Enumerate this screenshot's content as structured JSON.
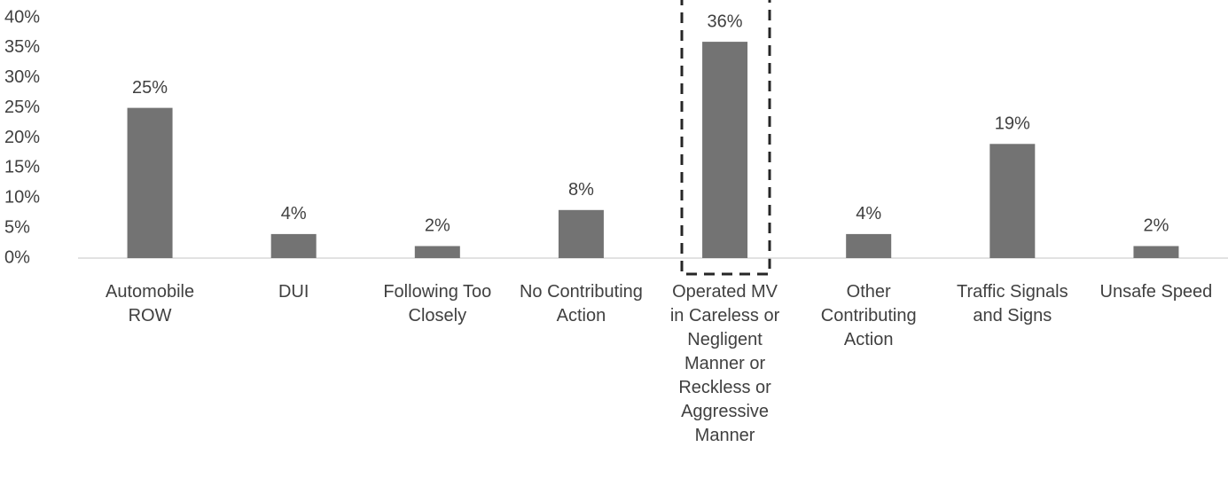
{
  "chart_data": {
    "type": "bar",
    "categories": [
      "Automobile ROW",
      "DUI",
      "Following Too Closely",
      "No Contributing Action",
      "Operated MV in Careless or Negligent Manner or Reckless or Aggressive Manner",
      "Other Contributing Action",
      "Traffic Signals and Signs",
      "Unsafe Speed"
    ],
    "values": [
      25,
      4,
      2,
      8,
      36,
      4,
      19,
      2
    ],
    "value_labels": [
      "25%",
      "4%",
      "2%",
      "8%",
      "36%",
      "4%",
      "19%",
      "2%"
    ],
    "color": "#737373",
    "ylim": [
      0,
      40
    ],
    "yticks": [
      {
        "value": 0,
        "label": "0%"
      },
      {
        "value": 5,
        "label": "5%"
      },
      {
        "value": 10,
        "label": "10%"
      },
      {
        "value": 15,
        "label": "15%"
      },
      {
        "value": 20,
        "label": "20%"
      },
      {
        "value": 25,
        "label": "25%"
      },
      {
        "value": 30,
        "label": "30%"
      },
      {
        "value": 35,
        "label": "35%"
      },
      {
        "value": 40,
        "label": "40%"
      }
    ],
    "grid": false
  }
}
